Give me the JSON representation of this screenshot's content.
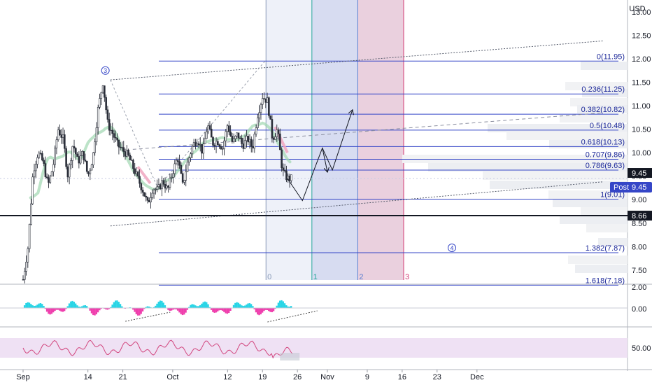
{
  "chart_data": {
    "type": "candlestick",
    "currency": "USD",
    "price_axis": {
      "range": [
        7.2,
        13.0
      ],
      "ticks": [
        "13.00",
        "12.50",
        "12.00",
        "11.50",
        "11.00",
        "10.50",
        "10.00",
        "9.50",
        "9.00",
        "8.50",
        "8.00",
        "7.50"
      ],
      "price_tag": "9.45",
      "post_label": "Post",
      "post_value": "9.45",
      "line_tag": "8.66",
      "line_value": 8.66
    },
    "x_axis": {
      "ticks": [
        {
          "label": "Sep",
          "day": 0
        },
        {
          "label": "14",
          "day": 13
        },
        {
          "label": "21",
          "day": 20
        },
        {
          "label": "Oct",
          "day": 30
        },
        {
          "label": "12",
          "day": 41
        },
        {
          "label": "19",
          "day": 48
        },
        {
          "label": "26",
          "day": 55
        },
        {
          "label": "Nov",
          "day": 61
        },
        {
          "label": "9",
          "day": 69
        },
        {
          "label": "16",
          "day": 76
        },
        {
          "label": "23",
          "day": 83
        },
        {
          "label": "Dec",
          "day": 91
        }
      ]
    },
    "anchors": [
      {
        "day": 0,
        "price": 7.3
      },
      {
        "day": 1,
        "price": 8.0
      },
      {
        "day": 2,
        "price": 9.6
      },
      {
        "day": 3,
        "price": 10.0
      },
      {
        "day": 4,
        "price": 9.8
      },
      {
        "day": 5,
        "price": 9.3
      },
      {
        "day": 6,
        "price": 9.7
      },
      {
        "day": 7,
        "price": 10.5
      },
      {
        "day": 8,
        "price": 10.3
      },
      {
        "day": 9,
        "price": 9.5
      },
      {
        "day": 10,
        "price": 10.2
      },
      {
        "day": 11,
        "price": 9.8
      },
      {
        "day": 12,
        "price": 10.0
      },
      {
        "day": 13,
        "price": 9.5
      },
      {
        "day": 14,
        "price": 9.9
      },
      {
        "day": 15,
        "price": 10.9
      },
      {
        "day": 16,
        "price": 11.5
      },
      {
        "day": 17,
        "price": 10.6
      },
      {
        "day": 18,
        "price": 10.4
      },
      {
        "day": 19,
        "price": 10.15
      },
      {
        "day": 20,
        "price": 10.05
      },
      {
        "day": 21,
        "price": 9.95
      },
      {
        "day": 22,
        "price": 9.7
      },
      {
        "day": 23,
        "price": 9.45
      },
      {
        "day": 24,
        "price": 9.2
      },
      {
        "day": 25,
        "price": 8.9
      },
      {
        "day": 26,
        "price": 9.25
      },
      {
        "day": 27,
        "price": 9.2
      },
      {
        "day": 28,
        "price": 9.4
      },
      {
        "day": 29,
        "price": 9.2
      },
      {
        "day": 30,
        "price": 9.6
      },
      {
        "day": 31,
        "price": 9.9
      },
      {
        "day": 32,
        "price": 9.3
      },
      {
        "day": 33,
        "price": 9.8
      },
      {
        "day": 34,
        "price": 10.15
      },
      {
        "day": 35,
        "price": 10.3
      },
      {
        "day": 36,
        "price": 10.0
      },
      {
        "day": 37,
        "price": 10.6
      },
      {
        "day": 38,
        "price": 10.2
      },
      {
        "day": 39,
        "price": 10.25
      },
      {
        "day": 40,
        "price": 10.1
      },
      {
        "day": 41,
        "price": 10.6
      },
      {
        "day": 42,
        "price": 10.2
      },
      {
        "day": 43,
        "price": 10.4
      },
      {
        "day": 44,
        "price": 10.15
      },
      {
        "day": 45,
        "price": 10.3
      },
      {
        "day": 46,
        "price": 10.1
      },
      {
        "day": 47,
        "price": 10.8
      },
      {
        "day": 48,
        "price": 11.2
      },
      {
        "day": 49,
        "price": 11.1
      },
      {
        "day": 50,
        "price": 10.3
      },
      {
        "day": 51,
        "price": 10.5
      },
      {
        "day": 52,
        "price": 9.6
      },
      {
        "day": 53,
        "price": 9.45
      },
      {
        "day": 54,
        "price": 9.45
      }
    ],
    "fib_levels": [
      {
        "label": "0(11.95)",
        "price": 11.95
      },
      {
        "label": "0.236(11.25)",
        "price": 11.25
      },
      {
        "label": "0.382(10.82)",
        "price": 10.82
      },
      {
        "label": "0.5(10.48)",
        "price": 10.48
      },
      {
        "label": "0.618(10.13)",
        "price": 10.13
      },
      {
        "label": "0.707(9.86)",
        "price": 9.86
      },
      {
        "label": "0.786(9.63)",
        "price": 9.63
      },
      {
        "label": "1(9.01)",
        "price": 9.01
      },
      {
        "label": "1.382(7.87)",
        "price": 7.87
      },
      {
        "label": "1.618(7.18)",
        "price": 7.18
      }
    ],
    "fib_time_labels": [
      "0",
      "1",
      "2",
      "3"
    ],
    "wave_labels": [
      "3",
      "4"
    ],
    "projection_path": [
      {
        "day": 53,
        "price": 9.45
      },
      {
        "day": 56,
        "price": 8.98
      },
      {
        "day": 60,
        "price": 10.1
      },
      {
        "day": 62,
        "price": 9.63
      },
      {
        "day": 66,
        "price": 10.9
      }
    ],
    "projection_path_2": [
      {
        "day": 60,
        "price": 10.1
      },
      {
        "day": 61,
        "price": 9.6
      }
    ],
    "macd_axis": {
      "ticks": [
        "2.00",
        "0.00"
      ],
      "range": [
        -1.6,
        3.0
      ]
    },
    "rsi_axis": {
      "ticks": [
        "50.00"
      ],
      "range": [
        22,
        82
      ]
    }
  }
}
